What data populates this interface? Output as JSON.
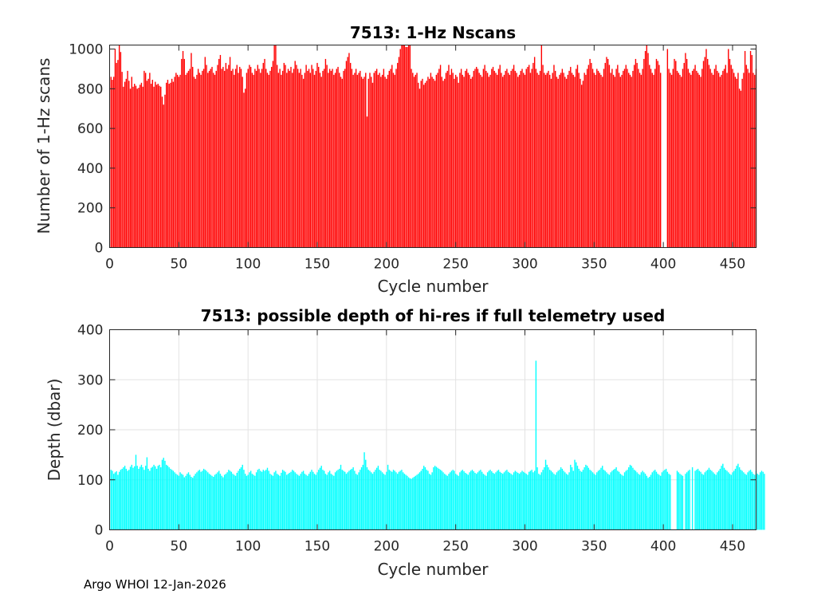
{
  "footer": "Argo WHOI 12-Jan-2026",
  "chart_data": [
    {
      "type": "bar",
      "title": "7513: 1-Hz Nscans",
      "xlabel": "Cycle number",
      "ylabel": "Number of 1-Hz scans",
      "xlim": [
        0,
        467
      ],
      "ylim": [
        0,
        1020
      ],
      "xticks": [
        0,
        50,
        100,
        150,
        200,
        250,
        300,
        350,
        400,
        450
      ],
      "yticks": [
        0,
        200,
        400,
        600,
        800,
        1000
      ],
      "grid": false,
      "color": "#ff0000",
      "x_start": 1,
      "values": [
        860,
        845,
        860,
        1000,
        930,
        945,
        1040,
        985,
        885,
        810,
        835,
        850,
        890,
        840,
        800,
        860,
        810,
        825,
        815,
        800,
        805,
        820,
        830,
        810,
        890,
        880,
        840,
        850,
        880,
        825,
        845,
        810,
        835,
        820,
        825,
        815,
        810,
        760,
        720,
        770,
        830,
        845,
        825,
        830,
        850,
        835,
        860,
        880,
        870,
        860,
        870,
        950,
        990,
        950,
        870,
        880,
        890,
        900,
        980,
        910,
        860,
        850,
        870,
        900,
        880,
        870,
        890,
        900,
        960,
        920,
        880,
        890,
        900,
        910,
        880,
        870,
        890,
        920,
        950,
        970,
        900,
        910,
        890,
        930,
        900,
        920,
        960,
        890,
        900,
        870,
        900,
        920,
        880,
        910,
        900,
        860,
        780,
        800,
        880,
        900,
        920,
        910,
        880,
        870,
        900,
        890,
        920,
        900,
        880,
        900,
        930,
        950,
        900,
        880,
        870,
        890,
        910,
        940,
        1040,
        1020,
        920,
        880,
        900,
        870,
        890,
        930,
        920,
        880,
        900,
        890,
        910,
        880,
        900,
        940,
        920,
        900,
        880,
        900,
        870,
        850,
        880,
        920,
        890,
        900,
        880,
        920,
        900,
        870,
        890,
        930,
        910,
        880,
        860,
        890,
        900,
        950,
        920,
        880,
        900,
        890,
        900,
        870,
        880,
        900,
        910,
        880,
        860,
        850,
        890,
        900,
        940,
        960,
        980,
        930,
        900,
        870,
        880,
        900,
        870,
        880,
        890,
        860,
        850,
        860,
        880,
        660,
        850,
        880,
        860,
        830,
        880,
        890,
        900,
        870,
        880,
        860,
        870,
        900,
        860,
        850,
        870,
        890,
        900,
        920,
        880,
        870,
        900,
        930,
        960,
        1000,
        1060,
        1040,
        1050,
        1010,
        1010,
        1040,
        1050,
        900,
        880,
        860,
        870,
        880,
        830,
        800,
        840,
        850,
        820,
        830,
        840,
        860,
        850,
        880,
        860,
        850,
        840,
        870,
        880,
        900,
        920,
        860,
        840,
        850,
        880,
        890,
        920,
        870,
        900,
        880,
        850,
        870,
        860,
        830,
        880,
        900,
        870,
        860,
        890,
        900,
        880,
        870,
        850,
        860,
        890,
        900,
        910,
        900,
        880,
        870,
        860,
        900,
        920,
        890,
        880,
        860,
        870,
        900,
        910,
        890,
        880,
        870,
        900,
        920,
        880,
        860,
        870,
        890,
        900,
        880,
        870,
        890,
        900,
        920,
        890,
        880,
        860,
        870,
        890,
        900,
        880,
        870,
        900,
        910,
        920,
        880,
        900,
        930,
        960,
        900,
        880,
        870,
        890,
        1060,
        920,
        880,
        870,
        880,
        890,
        870,
        850,
        880,
        920,
        890,
        860,
        850,
        870,
        880,
        900,
        880,
        860,
        850,
        870,
        890,
        910,
        880,
        870,
        860,
        900,
        920,
        880,
        850,
        820,
        840,
        880,
        870,
        900,
        920,
        950,
        930,
        900,
        880,
        870,
        900,
        890,
        880,
        870,
        860,
        900,
        930,
        960,
        950,
        920,
        880,
        900,
        870,
        860,
        900,
        920,
        880,
        860,
        870,
        890,
        900,
        920,
        900,
        880,
        870,
        860,
        890,
        920,
        950,
        930,
        900,
        880,
        870,
        900,
        950,
        990,
        1020,
        980,
        920,
        900,
        880,
        870,
        900,
        950,
        940,
        920,
        880,
        0,
        0,
        0,
        0,
        1000,
        900,
        880,
        870,
        900,
        950,
        940,
        890,
        880,
        870,
        860,
        900,
        930,
        980,
        950,
        900,
        880,
        870,
        890,
        900,
        920,
        890,
        880,
        870,
        860,
        900,
        940,
        960,
        1000,
        950,
        920,
        900,
        880,
        870,
        900,
        920,
        890,
        880,
        860,
        870,
        890,
        900,
        920,
        880,
        1000,
        950,
        920,
        900,
        880,
        860,
        850,
        880,
        800,
        790,
        850,
        880,
        990,
        920,
        900,
        880,
        990,
        970,
        880,
        870,
        900
      ]
    },
    {
      "type": "bar",
      "title": "7513: possible depth of hi-res if full telemetry used",
      "xlabel": "Cycle number",
      "ylabel": "Depth (dbar)",
      "xlim": [
        0,
        467
      ],
      "ylim": [
        0,
        400
      ],
      "xticks": [
        0,
        50,
        100,
        150,
        200,
        250,
        300,
        350,
        400,
        450
      ],
      "yticks": [
        0,
        100,
        200,
        300,
        400
      ],
      "grid": true,
      "color": "#00ffff",
      "x_start": 1,
      "values": [
        120,
        118,
        112,
        115,
        117,
        110,
        116,
        120,
        122,
        125,
        128,
        122,
        118,
        120,
        126,
        130,
        124,
        127,
        150,
        128,
        122,
        126,
        130,
        125,
        120,
        128,
        145,
        122,
        118,
        124,
        126,
        130,
        127,
        122,
        128,
        130,
        125,
        140,
        144,
        138,
        130,
        128,
        125,
        122,
        120,
        118,
        115,
        112,
        110,
        108,
        115,
        112,
        110,
        105,
        108,
        112,
        115,
        110,
        106,
        104,
        108,
        112,
        115,
        118,
        120,
        116,
        118,
        122,
        120,
        118,
        115,
        112,
        110,
        108,
        106,
        110,
        112,
        115,
        118,
        112,
        108,
        105,
        110,
        112,
        115,
        120,
        118,
        116,
        112,
        110,
        108,
        114,
        118,
        122,
        125,
        130,
        120,
        112,
        108,
        110,
        115,
        118,
        112,
        110,
        108,
        115,
        120,
        122,
        118,
        116,
        120,
        118,
        120,
        124,
        118,
        112,
        110,
        108,
        115,
        118,
        112,
        110,
        108,
        114,
        120,
        118,
        116,
        110,
        112,
        114,
        116,
        120,
        118,
        115,
        112,
        110,
        108,
        112,
        116,
        118,
        112,
        110,
        108,
        112,
        116,
        120,
        116,
        112,
        110,
        115,
        120,
        124,
        128,
        120,
        118,
        112,
        110,
        115,
        118,
        112,
        110,
        108,
        115,
        118,
        120,
        122,
        130,
        120,
        118,
        116,
        112,
        115,
        118,
        120,
        122,
        125,
        118,
        112,
        110,
        115,
        120,
        125,
        130,
        155,
        140,
        125,
        120,
        118,
        115,
        112,
        116,
        120,
        124,
        128,
        120,
        118,
        115,
        112,
        110,
        116,
        130,
        120,
        118,
        116,
        120,
        118,
        115,
        112,
        116,
        118,
        120,
        115,
        112,
        110,
        108,
        105,
        103,
        102,
        104,
        106,
        108,
        110,
        112,
        115,
        118,
        122,
        128,
        125,
        120,
        118,
        112,
        110,
        115,
        125,
        128,
        126,
        124,
        122,
        120,
        118,
        115,
        112,
        110,
        108,
        112,
        115,
        118,
        120,
        118,
        112,
        110,
        108,
        115,
        118,
        120,
        117,
        114,
        112,
        110,
        115,
        118,
        120,
        117,
        114,
        112,
        115,
        118,
        120,
        116,
        112,
        110,
        108,
        115,
        118,
        120,
        117,
        114,
        112,
        115,
        118,
        120,
        116,
        114,
        112,
        115,
        118,
        120,
        116,
        114,
        112,
        110,
        115,
        118,
        116,
        114,
        112,
        115,
        118,
        116,
        114,
        112,
        110,
        116,
        118,
        120,
        115,
        118,
        338,
        125,
        112,
        110,
        115,
        120,
        125,
        140,
        130,
        125,
        120,
        118,
        115,
        112,
        110,
        115,
        118,
        120,
        125,
        122,
        118,
        115,
        112,
        110,
        115,
        130,
        125,
        118,
        140,
        135,
        128,
        122,
        118,
        116,
        120,
        125,
        130,
        128,
        124,
        120,
        118,
        115,
        112,
        110,
        115,
        118,
        120,
        124,
        128,
        120,
        118,
        115,
        112,
        110,
        115,
        118,
        120,
        122,
        125,
        118,
        116,
        112,
        110,
        108,
        115,
        118,
        120,
        125,
        130,
        128,
        124,
        120,
        118,
        115,
        112,
        110,
        115,
        118,
        115,
        112,
        108,
        104,
        106,
        110,
        115,
        118,
        120,
        116,
        112,
        110,
        108,
        115,
        118,
        120,
        122,
        116,
        112,
        110,
        0,
        0,
        0,
        0,
        118,
        115,
        112,
        110,
        108,
        0,
        112,
        115,
        118,
        120,
        0,
        125,
        0,
        118,
        120,
        122,
        118,
        116,
        112,
        110,
        115,
        118,
        120,
        124,
        120,
        118,
        115,
        112,
        110,
        115,
        118,
        122,
        128,
        132,
        124,
        120,
        118,
        115,
        112,
        110,
        115,
        118,
        122,
        128,
        132,
        125,
        120,
        118,
        115,
        112,
        110,
        115,
        118,
        120,
        116,
        112,
        110,
        118,
        112,
        110,
        115,
        118,
        116,
        112
      ]
    }
  ]
}
